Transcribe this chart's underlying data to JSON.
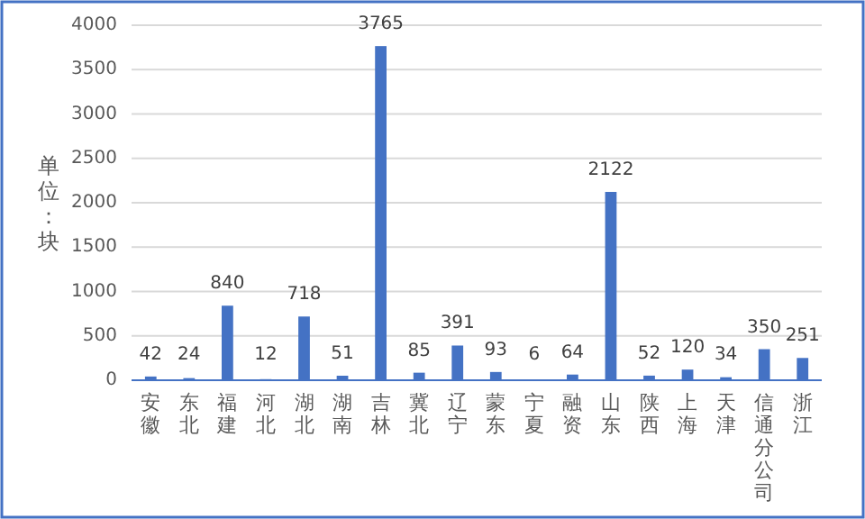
{
  "chart_data": {
    "type": "bar",
    "ylabel": "单位：块",
    "categories": [
      "安徽",
      "东北",
      "福建",
      "河北",
      "湖北",
      "湖南",
      "吉林",
      "冀北",
      "辽宁",
      "蒙东",
      "宁夏",
      "融资",
      "山东",
      "陕西",
      "上海",
      "天津",
      "信通分公司",
      "浙江"
    ],
    "values": [
      42,
      24,
      840,
      12,
      718,
      51,
      3765,
      85,
      391,
      93,
      6,
      64,
      2122,
      52,
      120,
      34,
      350,
      251
    ],
    "color": "#4472c4",
    "ylim": [
      0,
      4000
    ],
    "yticks": [
      0,
      500,
      1000,
      1500,
      2000,
      2500,
      3000,
      3500,
      4000
    ],
    "grid": "y",
    "data_labels": true
  }
}
